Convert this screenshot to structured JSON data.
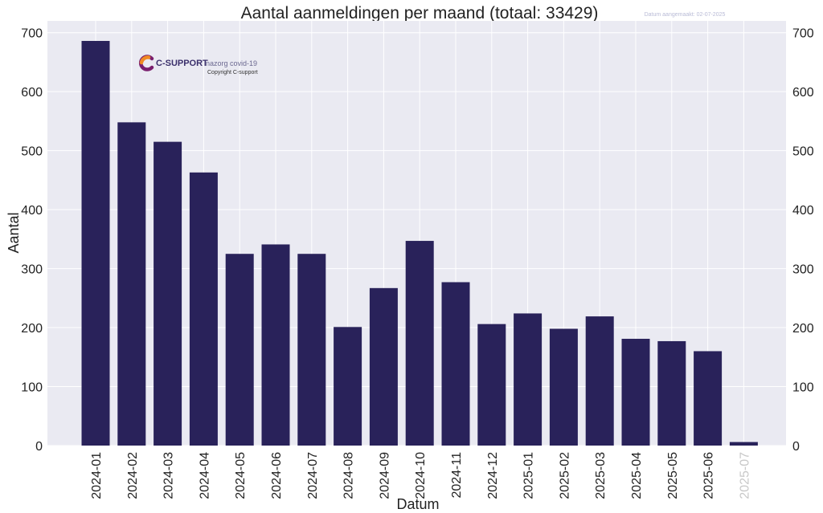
{
  "chart_data": {
    "type": "bar",
    "title": "Aantal aanmeldingen per maand (totaal: 33429)",
    "xlabel": "Datum",
    "ylabel": "Aantal",
    "creation_note": "Datum aangemaakt: 02-07-2025",
    "categories": [
      "2024-01",
      "2024-02",
      "2024-03",
      "2024-04",
      "2024-05",
      "2024-06",
      "2024-07",
      "2024-08",
      "2024-09",
      "2024-10",
      "2024-11",
      "2024-12",
      "2025-01",
      "2025-02",
      "2025-03",
      "2025-04",
      "2025-05",
      "2025-06",
      "2025-07"
    ],
    "values": [
      686,
      548,
      515,
      463,
      325,
      341,
      325,
      201,
      267,
      347,
      277,
      206,
      224,
      198,
      219,
      181,
      177,
      160,
      6
    ],
    "faded_categories": [
      "2025-07"
    ],
    "ylim": [
      0,
      720
    ],
    "yticks": [
      0,
      100,
      200,
      300,
      400,
      500,
      600,
      700
    ],
    "grid": true,
    "secondary_y_axis": true,
    "colors": {
      "bar": "#29225a",
      "plot_background": "#eaeaf2",
      "grid": "#ffffff",
      "faded_label": "#c8c8c8",
      "logo_orange": "#f08a24",
      "logo_purple": "#7a1f6e",
      "logo_text": "#3a2f6b"
    }
  },
  "watermark": {
    "brand": "C-SUPPORT",
    "tagline": "nazorg covid-19",
    "copyright": "Copyright C-support"
  }
}
